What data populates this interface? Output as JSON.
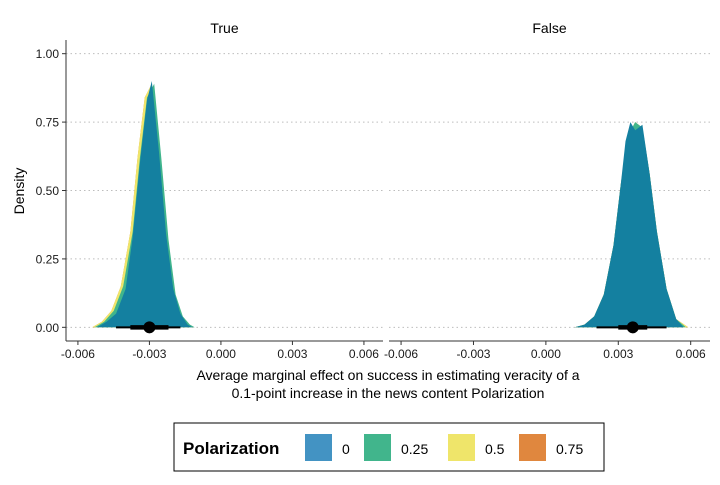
{
  "chart_data": {
    "type": "area",
    "ylabel": "Density",
    "xlabel_lines": [
      "Average marginal effect on success in estimating veracity of a",
      "0.1-point increase in the news content Polarization"
    ],
    "xlim": [
      -0.0065,
      0.0068
    ],
    "ylim": [
      -0.05,
      1.05
    ],
    "x_ticks": [
      -0.006,
      -0.003,
      0.0,
      0.003,
      0.006
    ],
    "x_tick_labels": [
      "-0.006",
      "-0.003",
      "0.000",
      "0.003",
      "0.006"
    ],
    "y_ticks": [
      0,
      0.25,
      0.5,
      0.75,
      1.0
    ],
    "y_tick_labels": [
      "0.00",
      "0.25",
      "0.50",
      "0.75",
      "1.00"
    ],
    "grid": "horizontal dotted",
    "legend": {
      "title": "Polarization",
      "position": "bottom",
      "entries": [
        {
          "label": "0",
          "color": "#4393C3"
        },
        {
          "label": "0.25",
          "color": "#41B58C"
        },
        {
          "label": "0.5",
          "color": "#EFE56A"
        },
        {
          "label": "0.75",
          "color": "#E0873E"
        }
      ]
    },
    "panels": [
      {
        "title": "True",
        "series": [
          {
            "name": "0.75",
            "color": "#E0873E",
            "x": [
              -0.0054,
              -0.005,
              -0.0046,
              -0.0042,
              -0.0038,
              -0.0035,
              -0.0032,
              -0.0029,
              -0.0026,
              -0.0023,
              -0.002,
              -0.0017,
              -0.0014,
              -0.0012
            ],
            "y": [
              0.0,
              0.02,
              0.06,
              0.15,
              0.35,
              0.62,
              0.84,
              0.89,
              0.62,
              0.32,
              0.12,
              0.04,
              0.01,
              0.0
            ]
          },
          {
            "name": "0.5",
            "color": "#EFE56A",
            "x": [
              -0.0054,
              -0.005,
              -0.0046,
              -0.0042,
              -0.0038,
              -0.0035,
              -0.0032,
              -0.0029,
              -0.0026,
              -0.0023,
              -0.002,
              -0.0017,
              -0.0014,
              -0.0012
            ],
            "y": [
              0.0,
              0.02,
              0.06,
              0.15,
              0.35,
              0.62,
              0.84,
              0.89,
              0.62,
              0.32,
              0.12,
              0.04,
              0.01,
              0.0
            ]
          },
          {
            "name": "0.25",
            "color": "#41B58C",
            "x": [
              -0.0053,
              -0.0049,
              -0.0045,
              -0.0041,
              -0.0037,
              -0.0034,
              -0.0031,
              -0.0028,
              -0.0025,
              -0.0022,
              -0.0019,
              -0.0016,
              -0.0013,
              -0.0011
            ],
            "y": [
              0.0,
              0.02,
              0.06,
              0.15,
              0.35,
              0.62,
              0.84,
              0.89,
              0.62,
              0.32,
              0.12,
              0.04,
              0.01,
              0.0
            ]
          },
          {
            "name": "0",
            "color": "#1480A0",
            "x": [
              -0.0052,
              -0.0048,
              -0.0044,
              -0.004,
              -0.0037,
              -0.0034,
              -0.0031,
              -0.0029,
              -0.0026,
              -0.0023,
              -0.002,
              -0.0017,
              -0.0014,
              -0.0012
            ],
            "y": [
              0.0,
              0.02,
              0.05,
              0.14,
              0.33,
              0.6,
              0.83,
              0.9,
              0.64,
              0.34,
              0.14,
              0.05,
              0.01,
              0.0
            ]
          }
        ],
        "interval": {
          "median": -0.003,
          "inner": [
            -0.0038,
            -0.0022
          ],
          "outer": [
            -0.0044,
            -0.0017
          ]
        }
      },
      {
        "title": "False",
        "series": [
          {
            "name": "0.75",
            "color": "#E0873E",
            "x": [
              0.0012,
              0.0016,
              0.002,
              0.0024,
              0.0028,
              0.0031,
              0.0034,
              0.0037,
              0.004,
              0.0043,
              0.0046,
              0.005,
              0.0054,
              0.0059
            ],
            "y": [
              0.0,
              0.01,
              0.04,
              0.12,
              0.3,
              0.52,
              0.7,
              0.75,
              0.73,
              0.56,
              0.35,
              0.14,
              0.03,
              0.0
            ]
          },
          {
            "name": "0.5",
            "color": "#EFE56A",
            "x": [
              0.0012,
              0.0016,
              0.002,
              0.0024,
              0.0028,
              0.0031,
              0.0034,
              0.0037,
              0.004,
              0.0043,
              0.0046,
              0.005,
              0.0054,
              0.0059
            ],
            "y": [
              0.0,
              0.01,
              0.04,
              0.12,
              0.3,
              0.52,
              0.7,
              0.75,
              0.73,
              0.56,
              0.35,
              0.14,
              0.03,
              0.0
            ]
          },
          {
            "name": "0.25",
            "color": "#41B58C",
            "x": [
              0.0012,
              0.0016,
              0.002,
              0.0024,
              0.0028,
              0.0031,
              0.0034,
              0.0037,
              0.004,
              0.0043,
              0.0046,
              0.005,
              0.0054,
              0.0058
            ],
            "y": [
              0.0,
              0.01,
              0.04,
              0.12,
              0.3,
              0.52,
              0.7,
              0.75,
              0.73,
              0.56,
              0.35,
              0.14,
              0.03,
              0.0
            ]
          },
          {
            "name": "0",
            "color": "#1480A0",
            "x": [
              0.0012,
              0.0016,
              0.002,
              0.0024,
              0.0028,
              0.0031,
              0.0033,
              0.0035,
              0.0037,
              0.004,
              0.0043,
              0.0046,
              0.005,
              0.0054,
              0.0057
            ],
            "y": [
              0.0,
              0.01,
              0.04,
              0.12,
              0.3,
              0.52,
              0.68,
              0.75,
              0.72,
              0.74,
              0.56,
              0.35,
              0.14,
              0.03,
              0.0
            ]
          }
        ],
        "interval": {
          "median": 0.0036,
          "inner": [
            0.003,
            0.0042
          ],
          "outer": [
            0.0021,
            0.005
          ]
        }
      }
    ]
  }
}
